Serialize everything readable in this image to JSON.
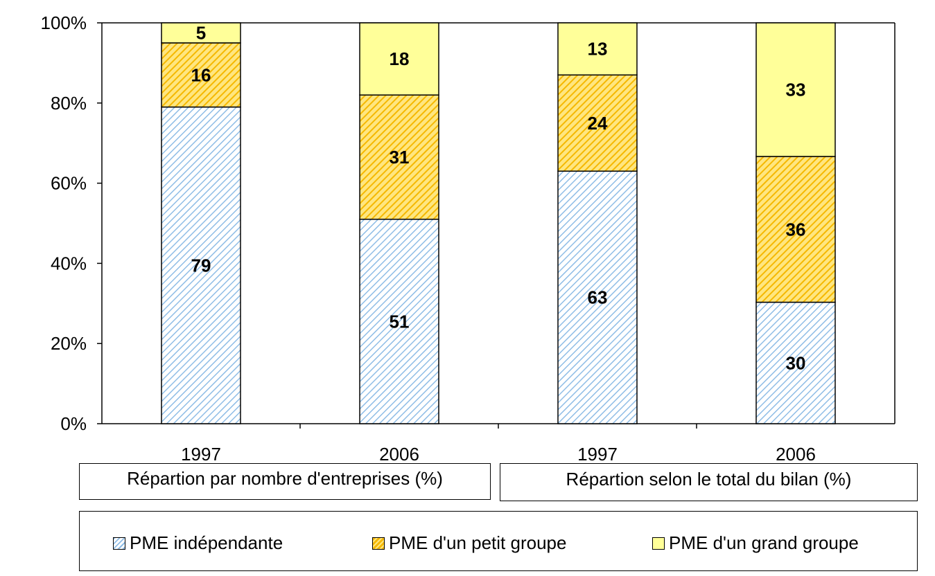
{
  "chart_data": {
    "type": "bar",
    "stacked": true,
    "percent": true,
    "categories": [
      "1997",
      "2006",
      "1997",
      "2006"
    ],
    "groups": [
      "Répartion par nombre d'entreprises (%)",
      "Répartion selon le total du bilan (%)"
    ],
    "series": [
      {
        "name": "PME indépendante",
        "values": [
          79,
          51,
          63,
          30
        ],
        "color": "#9dc3e6",
        "pattern": "light-diagonal"
      },
      {
        "name": "PME d'un petit groupe",
        "values": [
          16,
          31,
          24,
          36
        ],
        "color": "#ffc000",
        "pattern": "dark-diagonal"
      },
      {
        "name": "PME d'un grand groupe",
        "values": [
          5,
          18,
          13,
          33
        ],
        "color": "#ffff99",
        "pattern": "solid"
      }
    ],
    "yticks": [
      "0%",
      "20%",
      "40%",
      "60%",
      "80%",
      "100%"
    ],
    "ylim": [
      0,
      100
    ],
    "legend_position": "bottom"
  }
}
